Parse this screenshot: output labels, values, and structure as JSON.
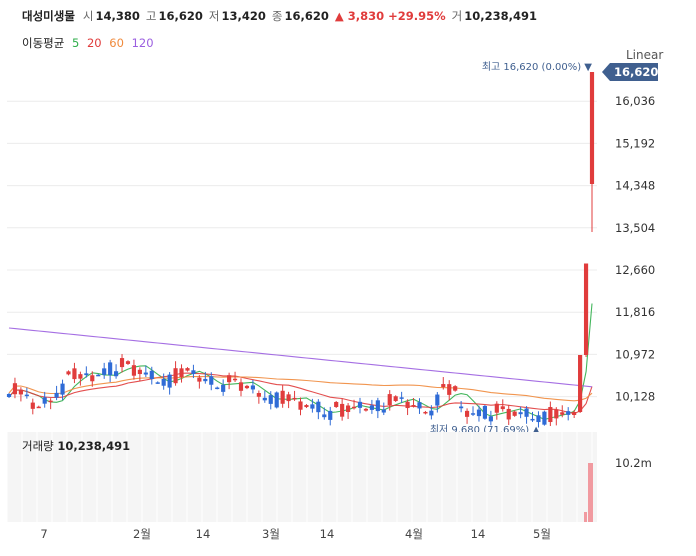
{
  "header": {
    "stock_name": "대성미생물",
    "open_label": "시",
    "open": "14,380",
    "high_label": "고",
    "high": "16,620",
    "low_label": "저",
    "low": "13,420",
    "close_label": "종",
    "close": "16,620",
    "change_arrow": "▲",
    "change": "3,830",
    "change_pct": "+29.95%",
    "volume_label": "거",
    "volume": "10,238,491"
  },
  "moving_average": {
    "label": "이동평균",
    "periods": [
      {
        "value": "5",
        "color": "#2fae4a"
      },
      {
        "value": "20",
        "color": "#e03c3c"
      },
      {
        "value": "60",
        "color": "#f08a3c"
      },
      {
        "value": "120",
        "color": "#9b5fe0"
      }
    ]
  },
  "scale_mode": "Linear",
  "volume_panel": {
    "label": "거래량",
    "value": "10,238,491",
    "axis_label": "10.2m"
  },
  "chart_data": {
    "type": "candlestick",
    "y_ticks": [
      "16,036",
      "15,192",
      "14,348",
      "13,504",
      "12,660",
      "11,816",
      "10,972",
      "10,128"
    ],
    "ylim": [
      9560,
      16960
    ],
    "x_ticks": [
      "7",
      "2월",
      "14",
      "3월",
      "14",
      "4월",
      "14",
      "5월"
    ],
    "last_price_label": "16,620",
    "max_annotation": "최고 16,620 (0.00%) ▼",
    "min_annotation": "최저 9,680 (71.69%) ▲",
    "last_candles": [
      {
        "open": 9760,
        "high": 9860,
        "low": 9700,
        "close": 9820
      },
      {
        "open": 9820,
        "high": 10960,
        "low": 9800,
        "close": 10960
      },
      {
        "open": 10960,
        "high": 12790,
        "low": 10920,
        "close": 12790
      },
      {
        "open": 14380,
        "high": 16620,
        "low": 13420,
        "close": 16620
      }
    ],
    "ma_colors": {
      "ma5": "#2fae4a",
      "ma20": "#e03c3c",
      "ma60": "#f08a3c",
      "ma120": "#9b5fe0"
    },
    "up_color": "#e03c3c",
    "down_color": "#2f6bd6"
  }
}
